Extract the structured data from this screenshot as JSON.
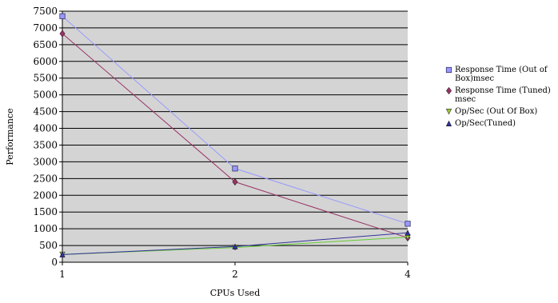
{
  "chart_data": {
    "type": "line",
    "x": [
      "1",
      "2",
      "4"
    ],
    "xlabel": "CPUs Used",
    "ylabel": "Performance",
    "ylim": [
      0,
      7500
    ],
    "yticks": [
      0,
      500,
      1000,
      1500,
      2000,
      2500,
      3000,
      3500,
      4000,
      4500,
      5000,
      5500,
      6000,
      6500,
      7000,
      7500
    ],
    "grid": "horizontal",
    "plot_background": "#d4d4d4",
    "legend_position": "right",
    "series": [
      {
        "name": "Response Time (Out of Box)msec",
        "values": [
          7350,
          2800,
          1150
        ],
        "color": "#9999ff",
        "marker": "square",
        "marker_color": "#9999ff"
      },
      {
        "name": "Response Time (Tuned) msec",
        "values": [
          6830,
          2400,
          730
        ],
        "color": "#993366",
        "marker": "diamond",
        "marker_color": "#993366"
      },
      {
        "name": "Op/Sec (Out Of Box)",
        "values": [
          230,
          440,
          750
        ],
        "color": "#66cc33",
        "marker": "triangle-down",
        "marker_color": "#99cc33"
      },
      {
        "name": "Op/Sec(Tuned)",
        "values": [
          230,
          470,
          880
        ],
        "color": "#333399",
        "marker": "triangle-up",
        "marker_color": "#333399"
      }
    ]
  }
}
